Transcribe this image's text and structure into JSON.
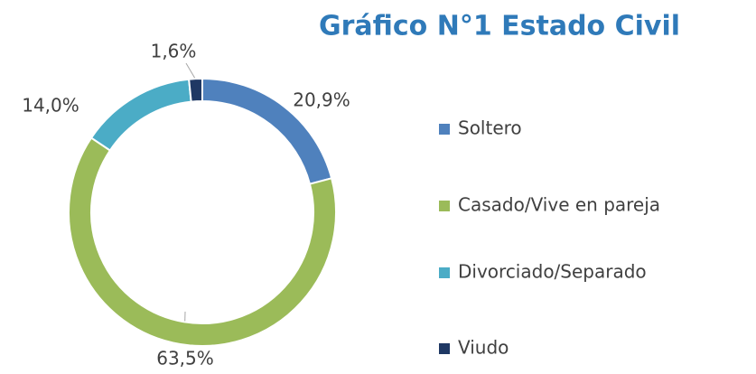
{
  "chart_data": {
    "type": "donut",
    "title": "Gráfico N°1 Estado Civil",
    "categories": [
      "Soltero",
      "Casado/Vive en pareja",
      "Divorciado/Separado",
      "Viudo"
    ],
    "values": [
      20.9,
      63.5,
      14.0,
      1.6
    ],
    "value_labels": [
      "20,9%",
      "63,5%",
      "14,0%",
      "1,6%"
    ],
    "colors": [
      "#4f81bd",
      "#9bbb59",
      "#4bacc6",
      "#1f3864"
    ],
    "legend": "right"
  }
}
